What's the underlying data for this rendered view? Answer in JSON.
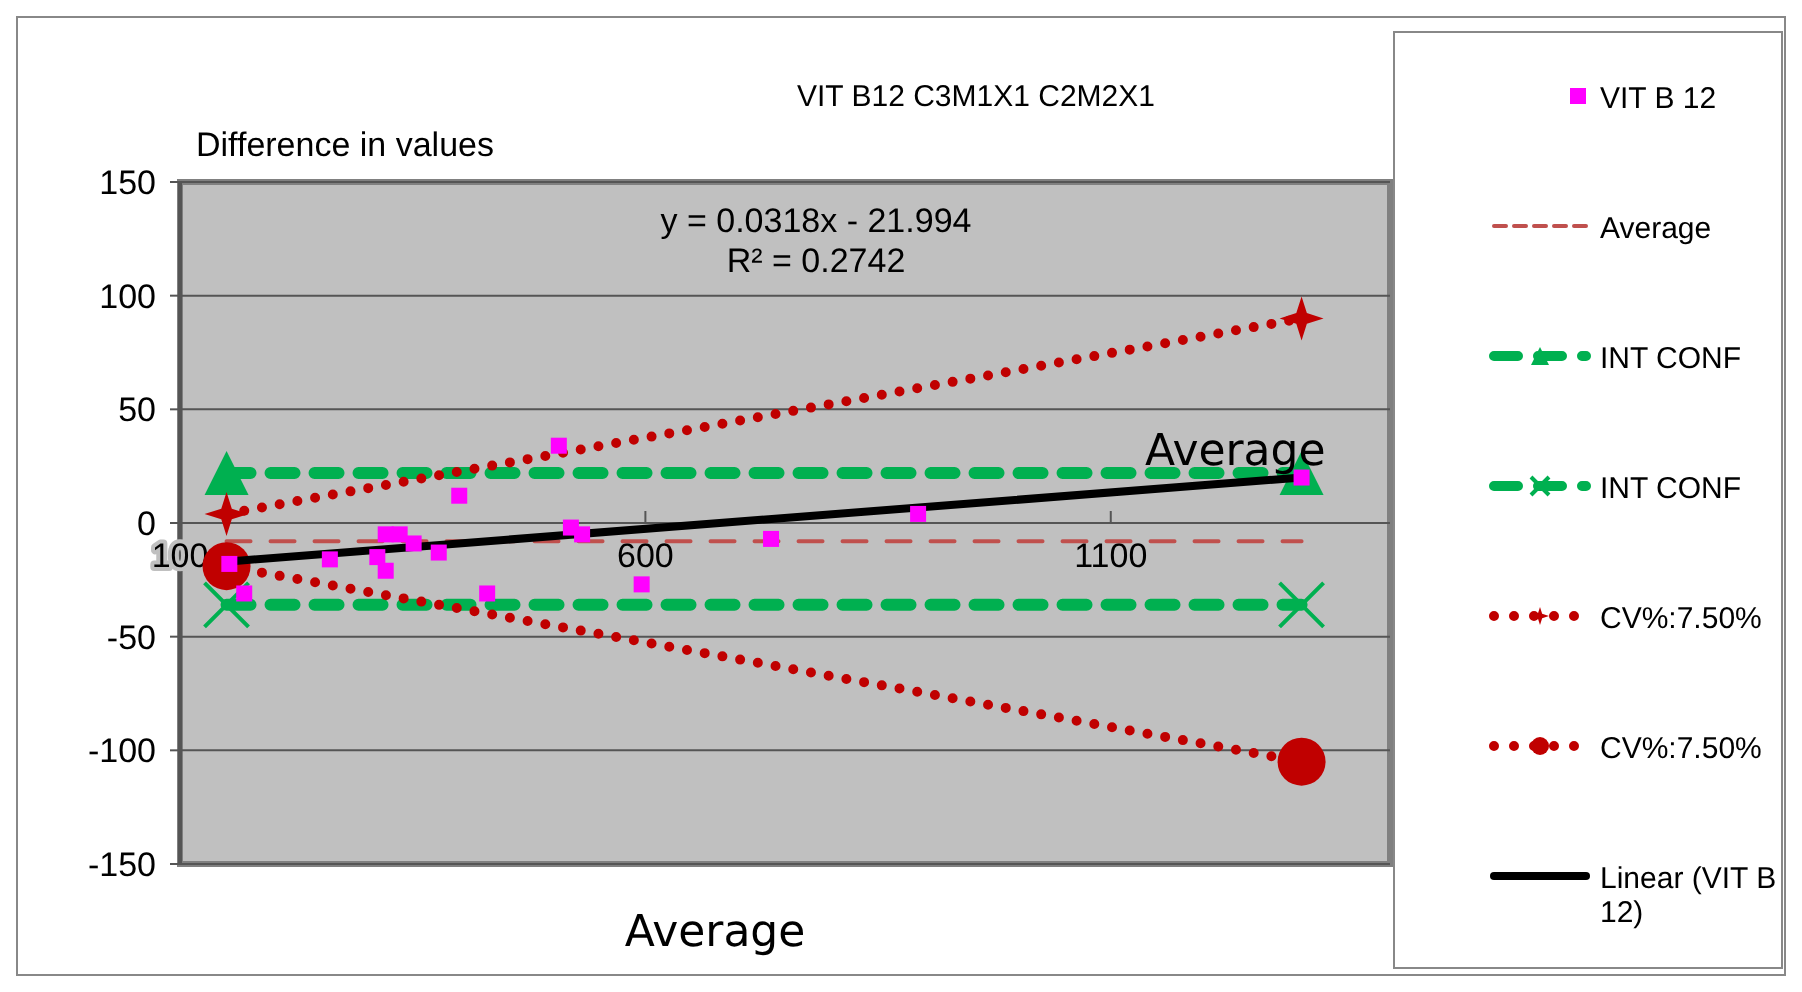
{
  "chart_data": {
    "type": "scatter",
    "title": "VIT B12 C3M1X1 C2M2X1",
    "xlabel": "Average",
    "ylabel": "Difference in values",
    "xlim": [
      100,
      1400
    ],
    "xticks": [
      100,
      600,
      1100
    ],
    "ylim": [
      -150,
      150
    ],
    "yticks": [
      -150,
      -100,
      -50,
      0,
      50,
      100,
      150
    ],
    "grid": "y",
    "legend": "right",
    "annotations": [
      "y = 0.0318x - 21.994",
      "R² = 0.2742",
      {
        "text": "Average",
        "x": 1305,
        "y": 22
      }
    ],
    "series": [
      {
        "name": "VIT B 12",
        "color": "#ff00ff",
        "marker": "square",
        "x": [
          153,
          169,
          261,
          312,
          321,
          336,
          321,
          351,
          378,
          400,
          430,
          507,
          520,
          532,
          596,
          735,
          893,
          1305
        ],
        "values": [
          -18,
          -31,
          -16,
          -15,
          -5,
          -5,
          -21,
          -9,
          -13,
          12,
          -31,
          34,
          -2,
          -5,
          -27,
          -7,
          4,
          20
        ]
      },
      {
        "name": "Average",
        "type": "line",
        "color": "#c0504d",
        "marker": "none",
        "line_style": "dashed",
        "x": [
          150,
          1305
        ],
        "values": [
          -8,
          -8
        ]
      },
      {
        "name": "INT CONF",
        "type": "line",
        "color": "#00b050",
        "marker": "triangle",
        "line_style": "dashed",
        "x": [
          150,
          1305
        ],
        "values": [
          22,
          22
        ]
      },
      {
        "name": "INT CONF",
        "type": "line",
        "color": "#00b050",
        "marker": "cross",
        "line_style": "dashed",
        "x": [
          150,
          1305
        ],
        "values": [
          -36,
          -36
        ]
      },
      {
        "name": "CV%:7.50%",
        "type": "line",
        "color": "#c00000",
        "marker": "star",
        "line_style": "dotted",
        "x": [
          150,
          1305
        ],
        "values": [
          4,
          90
        ]
      },
      {
        "name": "CV%:7.50%",
        "type": "line",
        "color": "#c00000",
        "marker": "circle",
        "line_style": "dotted",
        "x": [
          150,
          1305
        ],
        "values": [
          -19,
          -105
        ]
      },
      {
        "name": "Linear (VIT B 12)",
        "type": "line",
        "color": "#000000",
        "marker": "none",
        "line_style": "solid",
        "x": [
          150,
          1305
        ],
        "values": [
          -17,
          20
        ]
      }
    ]
  }
}
